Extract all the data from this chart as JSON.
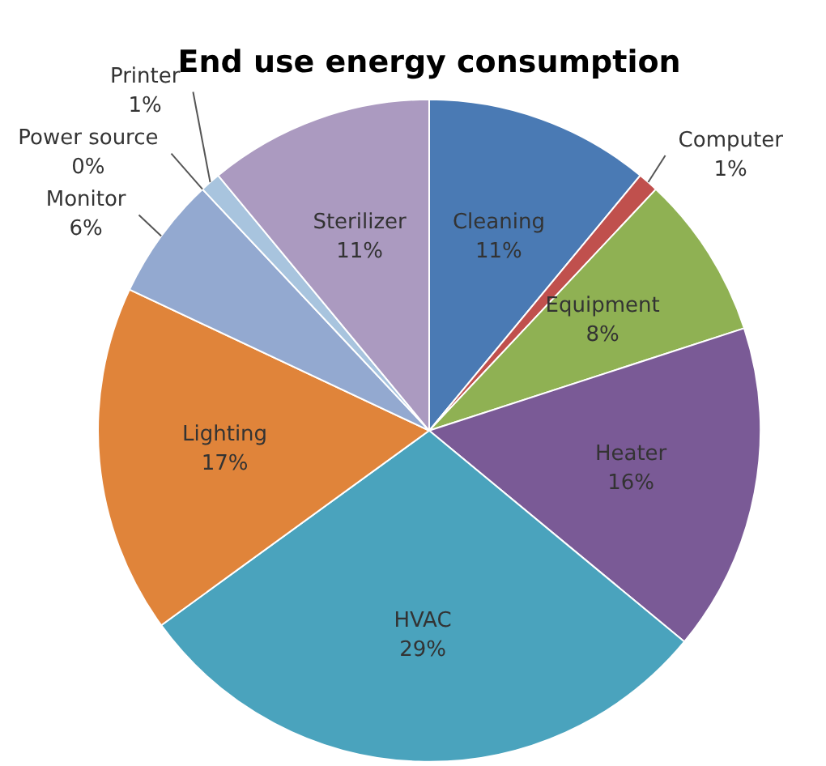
{
  "chart_data": {
    "type": "pie",
    "title": "End use energy consumption",
    "categories": [
      "Cleaning",
      "Computer",
      "Equipment",
      "Heater",
      "HVAC",
      "Lighting",
      "Monitor",
      "Power source",
      "Printer",
      "Sterilizer"
    ],
    "values": [
      11,
      1,
      8,
      16,
      29,
      17,
      6,
      0,
      1,
      11
    ],
    "colors": [
      "#4a7ab4",
      "#c0504d",
      "#8fb153",
      "#7a5a96",
      "#4aa3bd",
      "#e0843a",
      "#93a9d0",
      "#c4d89c",
      "#a8c4de",
      "#ab9ac0"
    ],
    "value_labels": [
      "11%",
      "1%",
      "8%",
      "16%",
      "29%",
      "17%",
      "6%",
      "0%",
      "1%",
      "11%"
    ],
    "legend": false
  }
}
